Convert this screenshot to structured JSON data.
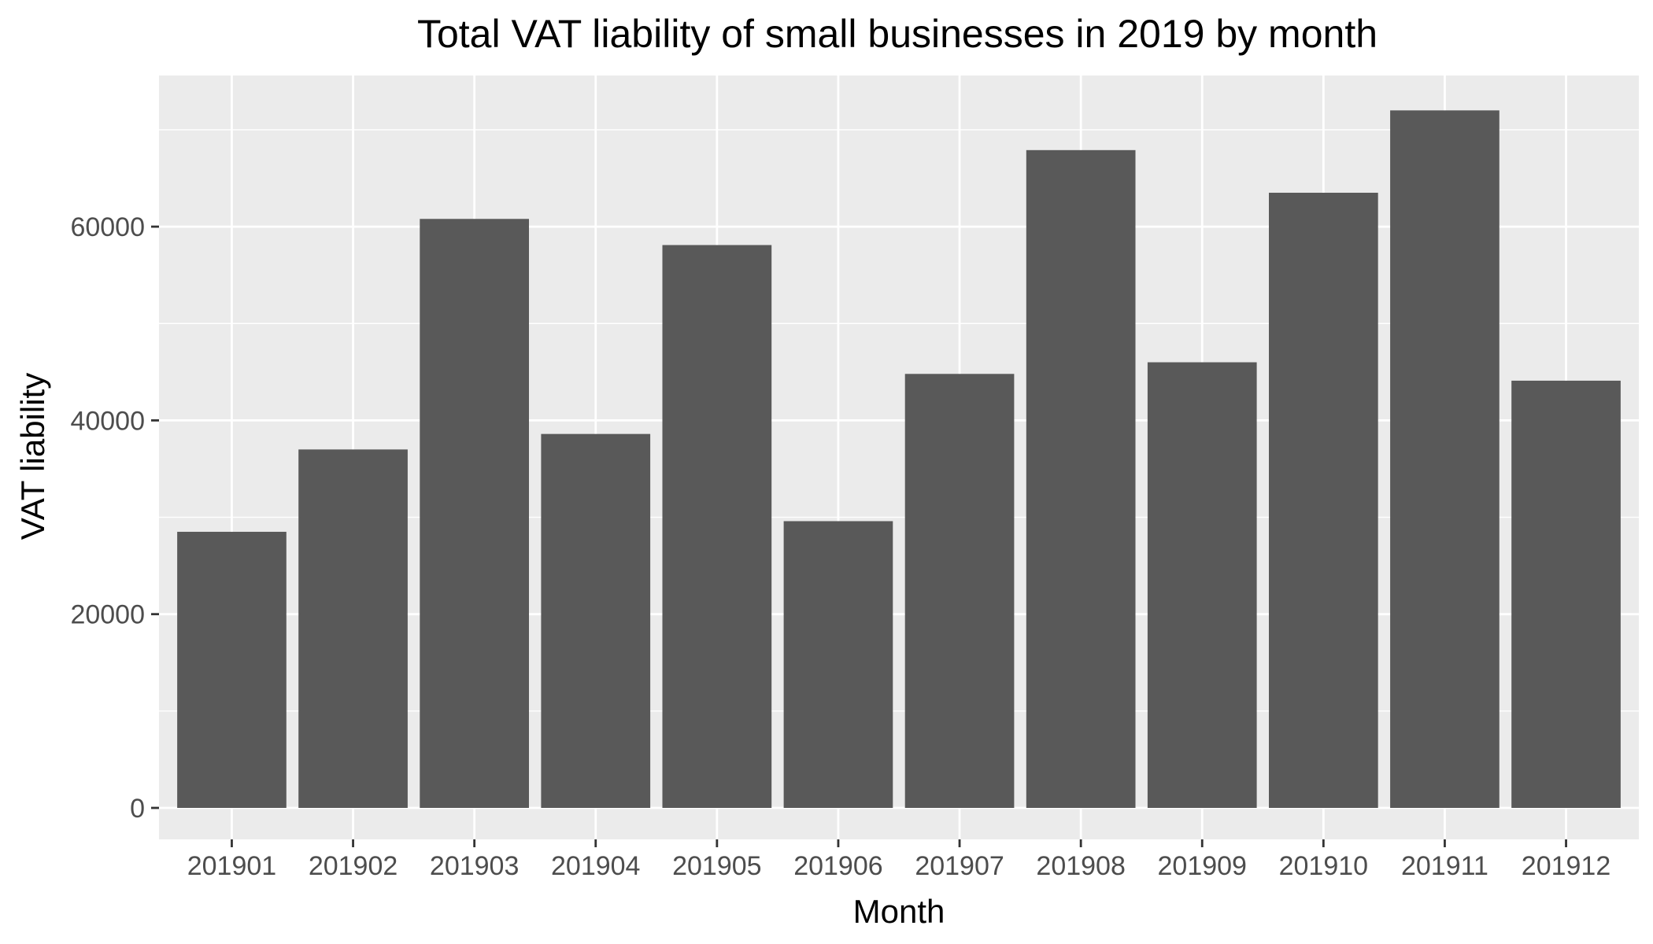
{
  "chart_data": {
    "type": "bar",
    "title": "Total VAT liability of small businesses in 2019 by month",
    "xlabel": "Month",
    "ylabel": "VAT liability",
    "categories": [
      "201901",
      "201902",
      "201903",
      "201904",
      "201905",
      "201906",
      "201907",
      "201908",
      "201909",
      "201910",
      "201911",
      "201912"
    ],
    "values": [
      28500,
      37000,
      60800,
      38600,
      58100,
      29600,
      44800,
      67900,
      46000,
      63500,
      72000,
      44100
    ],
    "ylim": [
      0,
      75600
    ],
    "yticks": [
      0,
      20000,
      40000,
      60000
    ],
    "ytick_labels": [
      "0",
      "20000",
      "40000",
      "60000"
    ],
    "grid": true,
    "colors": {
      "bar": "#595959",
      "panel": "#ebebeb",
      "grid": "#ffffff"
    }
  }
}
